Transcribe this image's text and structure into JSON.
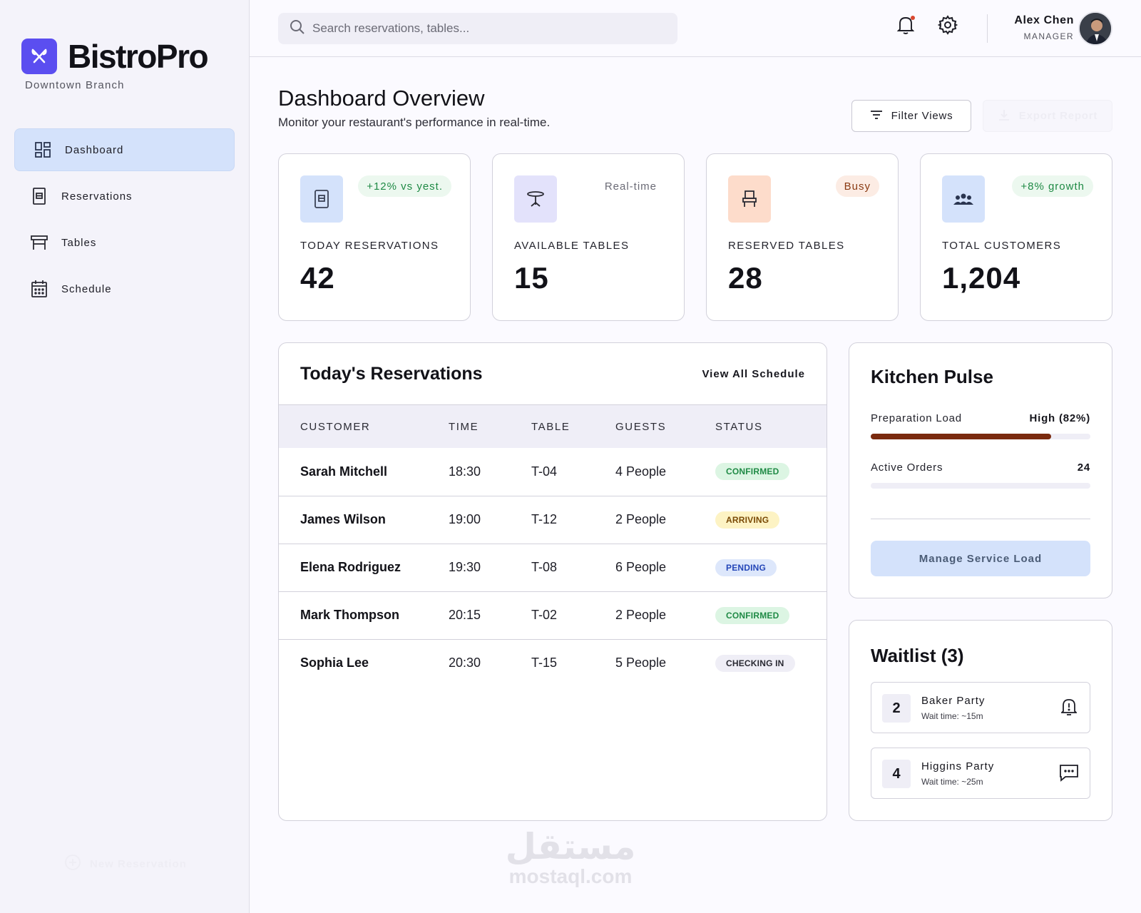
{
  "brand": {
    "name": "BistroPro",
    "branch": "Downtown Branch",
    "color": "#5b4ef0"
  },
  "sidebar": {
    "items": [
      {
        "label": "Dashboard",
        "icon": "dashboard-icon",
        "active": true
      },
      {
        "label": "Reservations",
        "icon": "reservations-icon"
      },
      {
        "label": "Tables",
        "icon": "table-icon"
      },
      {
        "label": "Schedule",
        "icon": "calendar-icon"
      }
    ],
    "new_reservation": "New Reservation"
  },
  "header": {
    "search_placeholder": "Search reservations, tables...",
    "user_name": "Alex Chen",
    "user_role": "MANAGER"
  },
  "page": {
    "title": "Dashboard Overview",
    "subtitle": "Monitor your restaurant's performance in real-time.",
    "filter_label": "Filter Views",
    "export_label": "Export Report"
  },
  "stats": [
    {
      "label": "TODAY RESERVATIONS",
      "value": "42",
      "badge": "+12% vs yest.",
      "icon": "reservation-book-icon",
      "icon_bg": "#d4e2fb",
      "badge_color": "#1f8a45",
      "badge_bg": "#ecf8ef"
    },
    {
      "label": "AVAILABLE TABLES",
      "value": "15",
      "badge": "Real-time",
      "icon": "table-icon",
      "icon_bg": "#e3e2fb",
      "badge_color": "#6b6b76",
      "badge_bg": "transparent"
    },
    {
      "label": "RESERVED TABLES",
      "value": "28",
      "badge": "Busy",
      "icon": "chair-icon",
      "icon_bg": "#fddccb",
      "badge_color": "#8a3a12",
      "badge_bg": "#fcece4"
    },
    {
      "label": "TOTAL CUSTOMERS",
      "value": "1,204",
      "badge": "+8% growth",
      "icon": "customers-icon",
      "icon_bg": "#d4e2fb",
      "badge_color": "#1f8a45",
      "badge_bg": "#ecf8ef"
    }
  ],
  "reservations": {
    "title": "Today's Reservations",
    "view_all": "View All Schedule",
    "columns": [
      "CUSTOMER",
      "TIME",
      "TABLE",
      "GUESTS",
      "STATUS"
    ],
    "rows": [
      {
        "customer": "Sarah Mitchell",
        "time": "18:30",
        "table": "T-04",
        "guests": "4 People",
        "status": "CONFIRMED"
      },
      {
        "customer": "James Wilson",
        "time": "19:00",
        "table": "T-12",
        "guests": "2 People",
        "status": "ARRIVING"
      },
      {
        "customer": "Elena Rodriguez",
        "time": "19:30",
        "table": "T-08",
        "guests": "6 People",
        "status": "PENDING"
      },
      {
        "customer": "Mark Thompson",
        "time": "20:15",
        "table": "T-02",
        "guests": "2 People",
        "status": "CONFIRMED"
      },
      {
        "customer": "Sophia Lee",
        "time": "20:30",
        "table": "T-15",
        "guests": "5 People",
        "status": "CHECKING IN"
      }
    ],
    "status_colors": {
      "CONFIRMED": {
        "fg": "#1f8a45",
        "bg": "#dcf5e3"
      },
      "ARRIVING": {
        "fg": "#7a4a06",
        "bg": "#fdf3c4"
      },
      "PENDING": {
        "fg": "#2446b8",
        "bg": "#dde7fb"
      },
      "CHECKING IN": {
        "fg": "#2a2a33",
        "bg": "#efeef6"
      }
    }
  },
  "kitchen": {
    "title": "Kitchen Pulse",
    "prep_label": "Preparation Load",
    "prep_value": "High (82%)",
    "prep_fraction": 0.82,
    "orders_label": "Active Orders",
    "orders_value": "24",
    "button": "Manage Service Load"
  },
  "waitlist": {
    "title": "Waitlist (3)",
    "items": [
      {
        "size": "2",
        "name": "Baker Party",
        "wait": "Wait time: ~15m",
        "action_icon": "bell-alert-icon"
      },
      {
        "size": "4",
        "name": "Higgins Party",
        "wait": "Wait time: ~25m",
        "action_icon": "message-icon"
      }
    ]
  },
  "watermark": {
    "arabic": "مستقل",
    "latin": "mostaql.com"
  }
}
